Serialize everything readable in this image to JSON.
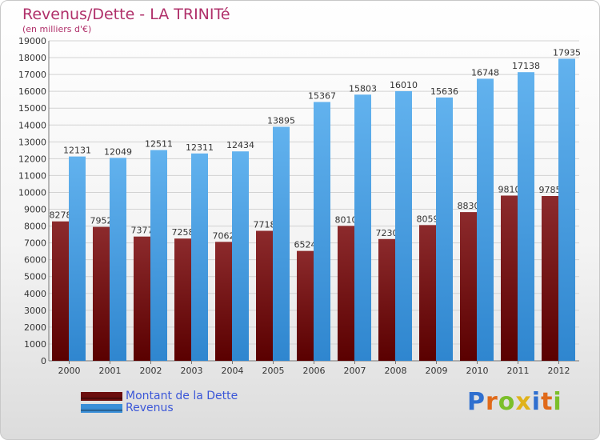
{
  "chart_data": {
    "type": "bar",
    "title": "Revenus/Dette - LA TRINITé",
    "subtitle": "(en milliers d'€)",
    "categories": [
      "2000",
      "2001",
      "2002",
      "2003",
      "2004",
      "2005",
      "2006",
      "2007",
      "2008",
      "2009",
      "2010",
      "2011",
      "2012"
    ],
    "series": [
      {
        "name": "Montant de la Dette",
        "color": "#7a1a1c",
        "values": [
          8278,
          7952,
          7377,
          7258,
          7062,
          7718,
          6524,
          8010,
          7230,
          8059,
          8830,
          9810,
          9785
        ],
        "labels": [
          "8278",
          "7952",
          "7377",
          "7258",
          "7062",
          "7718",
          "6524",
          "8010",
          "7230",
          "8059",
          "8830",
          "9810",
          "9785"
        ]
      },
      {
        "name": "Revenus",
        "color": "#4a9fe0",
        "values": [
          12131,
          12049,
          12511,
          12311,
          12434,
          13895,
          15367,
          15803,
          16010,
          15636,
          16748,
          17138,
          17935
        ],
        "labels": [
          "12131",
          "12049",
          "12511",
          "12311",
          "12434",
          "13895",
          "15367",
          "15803",
          "16010",
          "15636",
          "16748",
          "17138",
          "17935"
        ]
      }
    ],
    "ylim": [
      0,
      19000
    ],
    "ytick_step": 1000,
    "grid": true,
    "legend_position": "bottom-left"
  },
  "legend": {
    "items": [
      {
        "label": "Montant de la Dette",
        "color": "#6b0d0d"
      },
      {
        "label": "Revenus",
        "color": "#3a8fd8"
      }
    ]
  },
  "logo": {
    "letters": [
      "P",
      "r",
      "o",
      "x",
      "i",
      "t",
      "i"
    ],
    "colors": [
      "#2f6fcf",
      "#e06a1a",
      "#7bbf2a",
      "#e0b21a",
      "#2f6fcf",
      "#e06a1a",
      "#7bbf2a"
    ]
  }
}
